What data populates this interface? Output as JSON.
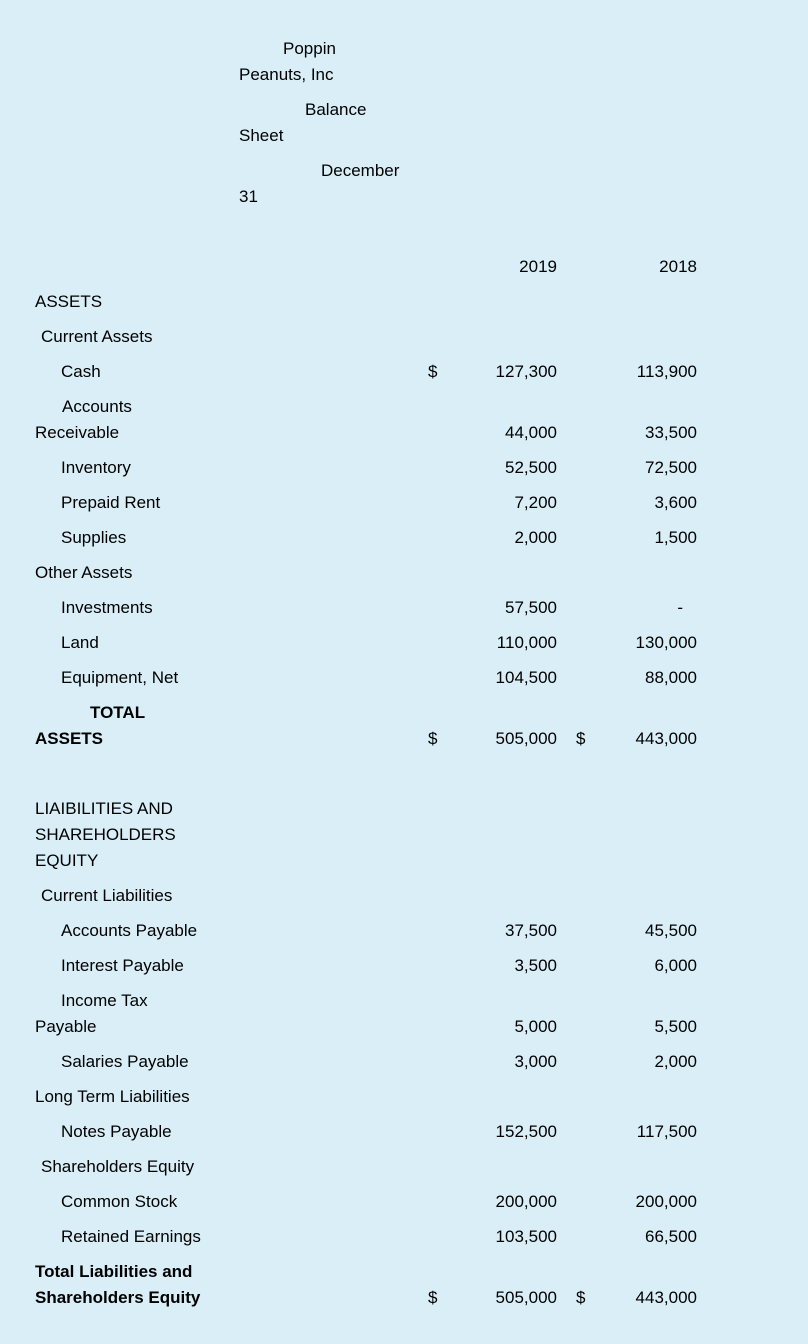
{
  "page": {
    "background_color": "#d9eef7",
    "text_color": "#000000"
  },
  "rows": [
    {
      "name": "title-company",
      "kind": "title",
      "lines": [
        {
          "text": "Poppin",
          "indent": 248
        },
        {
          "text": "Peanuts, Inc",
          "indent": 204
        }
      ]
    },
    {
      "name": "title-statement",
      "kind": "title",
      "lines": [
        {
          "text": "Balance",
          "indent": 270
        },
        {
          "text": "Sheet",
          "indent": 204
        }
      ]
    },
    {
      "name": "title-date",
      "kind": "title",
      "lines": [
        {
          "text": "December",
          "indent": 286
        },
        {
          "text": "31",
          "indent": 204
        }
      ]
    },
    {
      "name": "spacer-after-title",
      "kind": "spacer"
    },
    {
      "name": "column-headers",
      "kind": "item",
      "lines": [],
      "value1": "2019",
      "value2": "2018"
    },
    {
      "name": "assets-heading",
      "kind": "item",
      "lines": [
        {
          "text": "ASSETS",
          "indent": 0
        }
      ]
    },
    {
      "name": "current-assets-heading",
      "kind": "item",
      "lines": [
        {
          "text": "Current Assets",
          "indent": 6
        }
      ]
    },
    {
      "name": "cash-row",
      "kind": "item",
      "lines": [
        {
          "text": "Cash",
          "indent": 26
        }
      ],
      "dollar1": "$",
      "value1": "127,300",
      "value2": "113,900"
    },
    {
      "name": "accounts-receivable-row",
      "kind": "item",
      "lines": [
        {
          "text": "Accounts",
          "indent": 27
        },
        {
          "text": "Receivable",
          "indent": 0
        }
      ],
      "value1": "44,000",
      "value2": "33,500"
    },
    {
      "name": "inventory-row",
      "kind": "item",
      "lines": [
        {
          "text": "Inventory",
          "indent": 26
        }
      ],
      "value1": "52,500",
      "value2": "72,500"
    },
    {
      "name": "prepaid-rent-row",
      "kind": "item",
      "lines": [
        {
          "text": "Prepaid Rent",
          "indent": 26
        }
      ],
      "value1": "7,200",
      "value2": "3,600"
    },
    {
      "name": "supplies-row",
      "kind": "item",
      "lines": [
        {
          "text": "Supplies",
          "indent": 26
        }
      ],
      "value1": "2,000",
      "value2": "1,500"
    },
    {
      "name": "other-assets-heading",
      "kind": "item",
      "lines": [
        {
          "text": "Other Assets",
          "indent": 0
        }
      ]
    },
    {
      "name": "investments-row",
      "kind": "item",
      "lines": [
        {
          "text": "Investments",
          "indent": 26
        }
      ],
      "value1": "57,500",
      "value2": "-",
      "value2_dash": true
    },
    {
      "name": "land-row",
      "kind": "item",
      "lines": [
        {
          "text": "Land",
          "indent": 26
        }
      ],
      "value1": "110,000",
      "value2": "130,000"
    },
    {
      "name": "equipment-net-row",
      "kind": "item",
      "lines": [
        {
          "text": "Equipment, Net",
          "indent": 26
        }
      ],
      "value1": "104,500",
      "value2": "88,000"
    },
    {
      "name": "total-assets-row",
      "kind": "item",
      "bold": true,
      "lines": [
        {
          "text": "TOTAL",
          "indent": 55
        },
        {
          "text": "ASSETS",
          "indent": 0
        }
      ],
      "dollar1": "$",
      "value1": "505,000",
      "dollar2": "$",
      "value2": "443,000"
    },
    {
      "name": "spacer-after-assets",
      "kind": "spacer"
    },
    {
      "name": "liabilities-equity-heading",
      "kind": "item",
      "lines": [
        {
          "text": "LIAIBILITIES AND",
          "indent": 0
        },
        {
          "text": "SHAREHOLDERS",
          "indent": 0
        },
        {
          "text": "EQUITY",
          "indent": 0
        }
      ]
    },
    {
      "name": "current-liabilities-heading",
      "kind": "item",
      "lines": [
        {
          "text": "Current Liabilities",
          "indent": 6
        }
      ]
    },
    {
      "name": "accounts-payable-row",
      "kind": "item",
      "lines": [
        {
          "text": "Accounts Payable",
          "indent": 26
        }
      ],
      "value1": "37,500",
      "value2": "45,500"
    },
    {
      "name": "interest-payable-row",
      "kind": "item",
      "lines": [
        {
          "text": "Interest Payable",
          "indent": 26
        }
      ],
      "value1": "3,500",
      "value2": "6,000"
    },
    {
      "name": "income-tax-payable-row",
      "kind": "item",
      "lines": [
        {
          "text": "Income Tax",
          "indent": 26
        },
        {
          "text": "Payable",
          "indent": 0
        }
      ],
      "value1": "5,000",
      "value2": "5,500"
    },
    {
      "name": "salaries-payable-row",
      "kind": "item",
      "lines": [
        {
          "text": "Salaries Payable",
          "indent": 26
        }
      ],
      "value1": "3,000",
      "value2": "2,000"
    },
    {
      "name": "long-term-liabilities-heading",
      "kind": "item",
      "lines": [
        {
          "text": "Long Term Liabilities",
          "indent": 0
        }
      ]
    },
    {
      "name": "notes-payable-row",
      "kind": "item",
      "lines": [
        {
          "text": "Notes Payable",
          "indent": 26
        }
      ],
      "value1": "152,500",
      "value2": "117,500"
    },
    {
      "name": "shareholders-equity-heading",
      "kind": "item",
      "lines": [
        {
          "text": "Shareholders Equity",
          "indent": 6
        }
      ]
    },
    {
      "name": "common-stock-row",
      "kind": "item",
      "lines": [
        {
          "text": "Common Stock",
          "indent": 26
        }
      ],
      "value1": "200,000",
      "value2": "200,000"
    },
    {
      "name": "retained-earnings-row",
      "kind": "item",
      "lines": [
        {
          "text": "Retained Earnings",
          "indent": 26
        }
      ],
      "value1": "103,500",
      "value2": "66,500"
    },
    {
      "name": "total-liabilities-equity-row",
      "kind": "item",
      "bold": true,
      "lines": [
        {
          "text": "Total Liabilities and",
          "indent": 0
        },
        {
          "text": "Shareholders Equity",
          "indent": 0
        }
      ],
      "dollar1": "$",
      "value1": "505,000",
      "dollar2": "$",
      "value2": "443,000"
    }
  ]
}
